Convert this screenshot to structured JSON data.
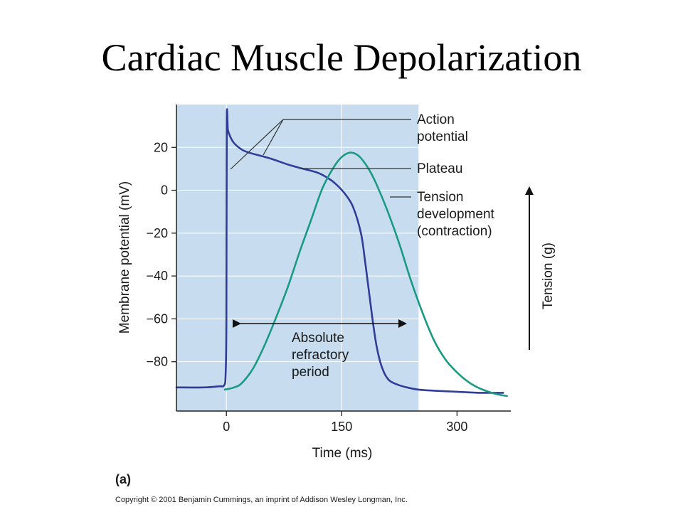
{
  "slide": {
    "title": "Cardiac Muscle Depolarization"
  },
  "chart_data": {
    "type": "line",
    "xlabel": "Time (ms)",
    "ylabel": "Membrane potential (mV)",
    "y2label": "Tension (g)",
    "xlim": [
      -65,
      370
    ],
    "ylim": [
      -103,
      40
    ],
    "xticks": [
      {
        "value": 0,
        "label": "0"
      },
      {
        "value": 150,
        "label": "150"
      },
      {
        "value": 300,
        "label": "300"
      }
    ],
    "yticks": [
      {
        "value": 20,
        "label": "20"
      },
      {
        "value": 0,
        "label": "0"
      },
      {
        "value": -20,
        "label": "−20"
      },
      {
        "value": -40,
        "label": "−40"
      },
      {
        "value": -60,
        "label": "−60"
      },
      {
        "value": -80,
        "label": "−80"
      }
    ],
    "grid": true,
    "shaded_region": {
      "label": "Absolute refractory period",
      "x_start": -75,
      "x_end": 250,
      "color": "#c7ddef"
    },
    "series": [
      {
        "name": "Action potential",
        "color": "#2f3d99",
        "x": [
          -65,
          -30,
          -10,
          -3,
          -1,
          0,
          0.5,
          2,
          5,
          10,
          20,
          30,
          45,
          60,
          80,
          100,
          120,
          135,
          145,
          155,
          165,
          175,
          180,
          185,
          190,
          195,
          200,
          205,
          210,
          215,
          225,
          235,
          250,
          270,
          300,
          330,
          360
        ],
        "y": [
          -92,
          -92,
          -91.5,
          -91,
          -86,
          -60,
          32,
          28,
          25,
          22,
          19,
          17.5,
          16,
          14.5,
          12,
          10,
          8,
          5,
          2,
          -2,
          -8,
          -20,
          -32,
          -46,
          -60,
          -72,
          -80,
          -85,
          -88,
          -89.5,
          -91,
          -92,
          -93,
          -93.5,
          -94,
          -94.5,
          -94.5
        ]
      },
      {
        "name": "Tension development (contraction)",
        "color": "#1a9a82",
        "x": [
          -2,
          10,
          20,
          35,
          50,
          65,
          80,
          95,
          110,
          125,
          140,
          150,
          160,
          168,
          175,
          185,
          195,
          210,
          225,
          240,
          255,
          270,
          285,
          300,
          315,
          330,
          350,
          365
        ],
        "y": [
          -93,
          -92,
          -90,
          -83,
          -72,
          -59,
          -45,
          -29,
          -14,
          1,
          11,
          15.5,
          17.5,
          17,
          15,
          10,
          3,
          -10,
          -25,
          -42,
          -57,
          -70,
          -79,
          -85,
          -89.5,
          -92.5,
          -95,
          -96
        ]
      }
    ],
    "annotations": [
      {
        "lines": [
          "Action",
          "potential"
        ]
      },
      {
        "lines": [
          "Plateau"
        ]
      },
      {
        "lines": [
          "Tension",
          "development",
          "(contraction)"
        ]
      },
      {
        "lines": [
          "Absolute",
          "refractory",
          "period"
        ]
      }
    ],
    "panel_label": "(a)"
  },
  "copyright": "Copyright © 2001 Benjamin Cummings, an imprint of Addison Wesley Longman, Inc."
}
